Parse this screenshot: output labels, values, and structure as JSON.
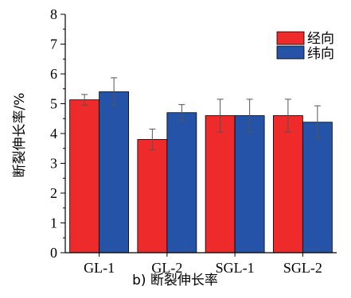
{
  "chart_data": {
    "type": "bar",
    "title": "",
    "caption": "b) 断裂伸长率",
    "xlabel": "",
    "ylabel": "断裂伸长率/%",
    "categories": [
      "GL-1",
      "GL-2",
      "SGL-1",
      "SGL-2"
    ],
    "ylim": [
      0,
      8
    ],
    "yticks": [
      0,
      1,
      2,
      3,
      4,
      5,
      6,
      7,
      8
    ],
    "grid": false,
    "legend_position": "top-right",
    "series": [
      {
        "name": "经向",
        "color": "#ee2a2a",
        "values": [
          5.13,
          3.8,
          4.6,
          4.6
        ],
        "errors": [
          0.18,
          0.35,
          0.55,
          0.55
        ]
      },
      {
        "name": "纬向",
        "color": "#2553a8",
        "values": [
          5.4,
          4.7,
          4.6,
          4.38
        ],
        "errors": [
          0.47,
          0.27,
          0.55,
          0.55
        ]
      }
    ]
  }
}
